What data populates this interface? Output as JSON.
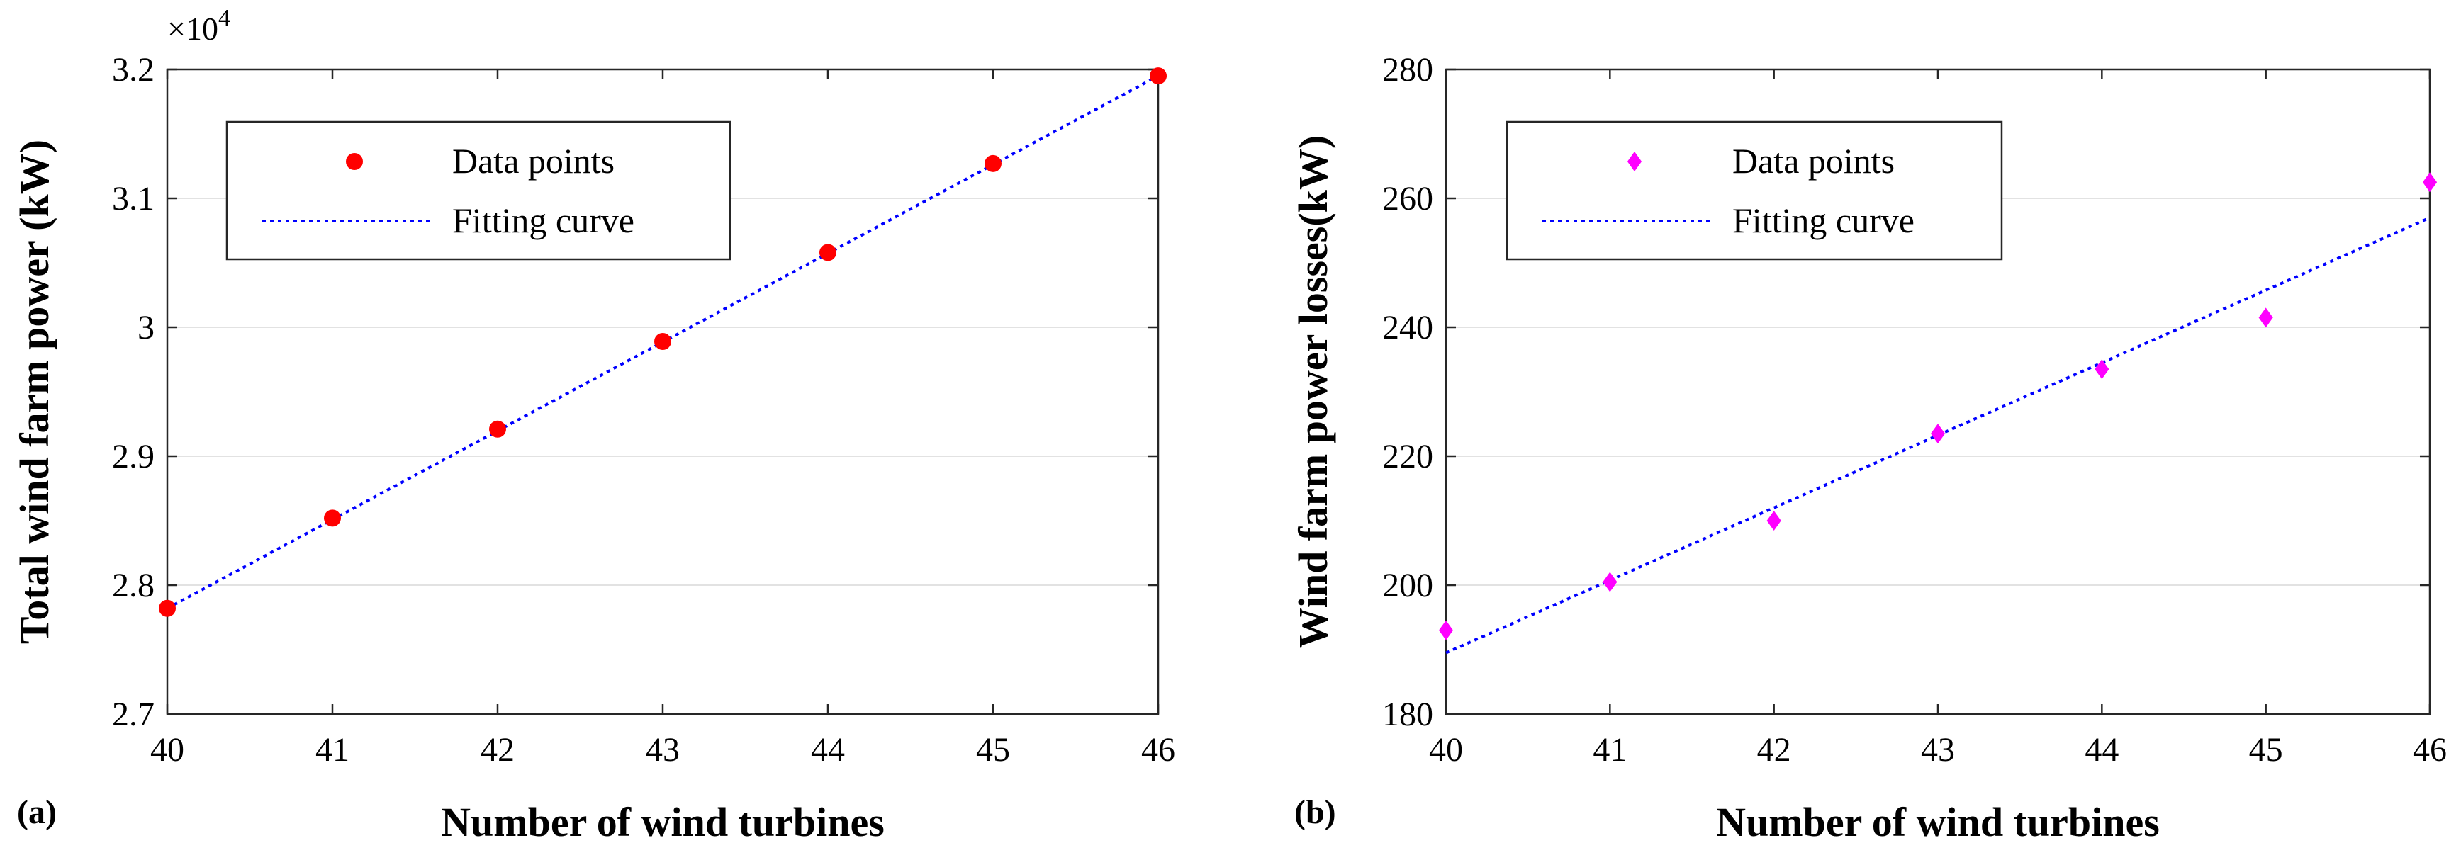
{
  "chart_data": [
    {
      "type": "scatter",
      "panel_label": "(a)",
      "exponent_label": "×10",
      "exponent_power": "4",
      "xlabel": "Number of wind turbines",
      "ylabel": "Total wind farm power (kW)",
      "xlim": [
        40,
        46
      ],
      "ylim": [
        2.7,
        3.2
      ],
      "xticks": [
        "40",
        "41",
        "42",
        "43",
        "44",
        "45",
        "46"
      ],
      "yticks": [
        "2.7",
        "2.8",
        "2.9",
        "3",
        "3.1",
        "3.2"
      ],
      "yticks_values": [
        2.7,
        2.8,
        2.9,
        3.0,
        3.1,
        3.2
      ],
      "grid": "horizontal",
      "legend_position": "top-left",
      "series": [
        {
          "name": "Data points",
          "kind": "points",
          "marker": "circle",
          "color": "#ff0000",
          "x": [
            40,
            41,
            42,
            43,
            44,
            45,
            46
          ],
          "y": [
            2.782,
            2.852,
            2.921,
            2.989,
            3.058,
            3.127,
            3.195
          ]
        },
        {
          "name": "Fitting curve",
          "kind": "line",
          "style": "dotted",
          "color": "#0000ff",
          "x": [
            40,
            46
          ],
          "y": [
            2.782,
            3.195
          ]
        }
      ]
    },
    {
      "type": "scatter",
      "panel_label": "(b)",
      "xlabel": "Number of wind turbines",
      "ylabel": "Wind farm power losses(kW)",
      "xlim": [
        40,
        46
      ],
      "ylim": [
        180,
        280
      ],
      "xticks": [
        "40",
        "41",
        "42",
        "43",
        "44",
        "45",
        "46"
      ],
      "yticks": [
        "180",
        "200",
        "220",
        "240",
        "260",
        "280"
      ],
      "yticks_values": [
        180,
        200,
        220,
        240,
        260,
        280
      ],
      "grid": "horizontal",
      "legend_position": "top-left",
      "series": [
        {
          "name": "Data points",
          "kind": "points",
          "marker": "diamond",
          "color": "#ff00ff",
          "x": [
            40,
            41,
            42,
            43,
            44,
            45,
            46
          ],
          "y": [
            193,
            200.5,
            210,
            223.5,
            233.5,
            241.5,
            262.5
          ]
        },
        {
          "name": "Fitting curve",
          "kind": "line",
          "style": "dotted",
          "color": "#0000ff",
          "x": [
            40,
            46
          ],
          "y": [
            189.5,
            257
          ]
        }
      ]
    }
  ]
}
